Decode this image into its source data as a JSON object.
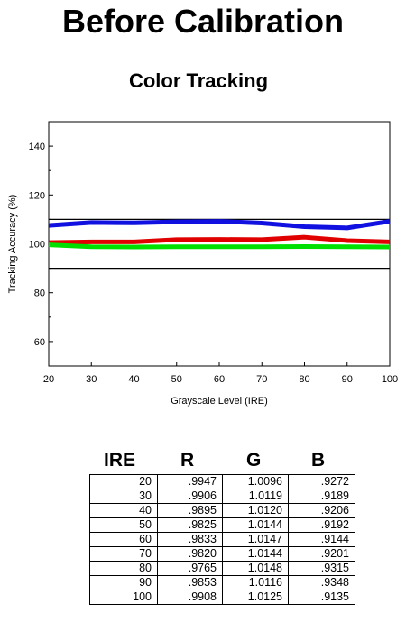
{
  "page_title": "Before Calibration",
  "chart_data": {
    "type": "line",
    "title": "Color Tracking",
    "xlabel": "Grayscale Level (IRE)",
    "ylabel": "Tracking Accuracy (%)",
    "xlim": [
      20,
      100
    ],
    "ylim": [
      50,
      150
    ],
    "x_ticks": [
      20,
      30,
      40,
      50,
      60,
      70,
      80,
      90,
      100
    ],
    "y_ticks": [
      60,
      80,
      100,
      120,
      140
    ],
    "grid": false,
    "reference_lines": [
      90,
      110
    ],
    "x": [
      20,
      30,
      40,
      50,
      60,
      70,
      80,
      90,
      100
    ],
    "series": [
      {
        "color": "#1010e0",
        "values": [
          107.5,
          108.7,
          108.6,
          109.0,
          109.2,
          108.5,
          107.0,
          106.5,
          109.2
        ]
      },
      {
        "color": "#e00000",
        "values": [
          100.5,
          100.8,
          100.8,
          101.7,
          101.8,
          101.7,
          102.7,
          101.3,
          100.8
        ]
      },
      {
        "color": "#00e000",
        "values": [
          99.6,
          98.8,
          98.7,
          98.8,
          98.8,
          98.8,
          98.9,
          98.8,
          98.7
        ]
      }
    ]
  },
  "table": {
    "headers": [
      "IRE",
      "R",
      "G",
      "B"
    ],
    "rows": [
      [
        "20",
        ".9947",
        "1.0096",
        ".9272"
      ],
      [
        "30",
        ".9906",
        "1.0119",
        ".9189"
      ],
      [
        "40",
        ".9895",
        "1.0120",
        ".9206"
      ],
      [
        "50",
        ".9825",
        "1.0144",
        ".9192"
      ],
      [
        "60",
        ".9833",
        "1.0147",
        ".9144"
      ],
      [
        "70",
        ".9820",
        "1.0144",
        ".9201"
      ],
      [
        "80",
        ".9765",
        "1.0148",
        ".9315"
      ],
      [
        "90",
        ".9853",
        "1.0116",
        ".9348"
      ],
      [
        "100",
        ".9908",
        "1.0125",
        ".9135"
      ]
    ]
  }
}
